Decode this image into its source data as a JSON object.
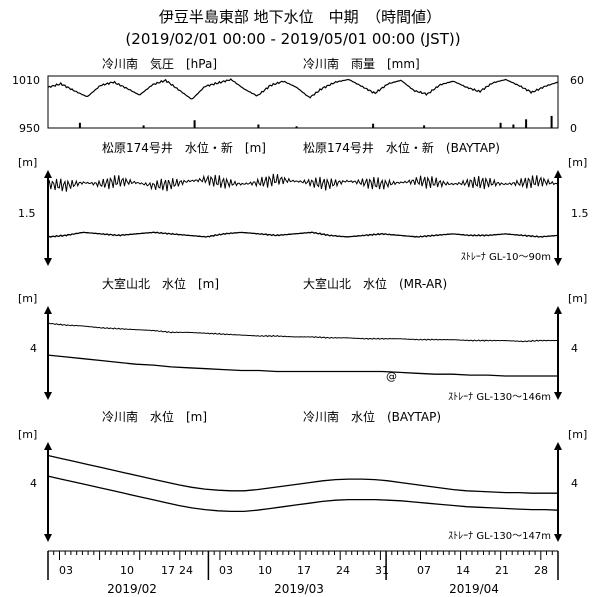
{
  "title": "伊豆半島東部 地下水位　中期　（時間値）",
  "subtitle": "(2019/02/01 00:00 - 2019/05/01 00:00 (JST))",
  "chart_data": {
    "type": "line",
    "x_start": "2019-02-01 00:00",
    "x_end": "2019-05-01 00:00",
    "panels": [
      {
        "left_label": "冷川南　気圧　[hPa]",
        "right_label": "冷川南　雨量　[mm]",
        "left_ticks": [
          "1010",
          "950"
        ],
        "right_ticks": [
          "60",
          "0"
        ],
        "left_ylim": [
          950,
          1010
        ],
        "right_ylim": [
          0,
          60
        ],
        "series": [
          {
            "kind": "pressure",
            "values": [
              997,
              1001,
              993,
              986,
              999,
              1003,
              996,
              988,
              1000,
              1005,
              994,
              983,
              998,
              1002,
              1006,
              995,
              987,
              999,
              1004,
              997,
              985,
              996,
              1003,
              1006,
              998,
              990,
              1001,
              1005,
              993,
              989,
              1000,
              1004,
              997,
              992,
              1002,
              1006,
              999,
              991,
              998,
              1003
            ]
          },
          {
            "kind": "rain",
            "values": [
              0,
              0,
              6,
              0,
              0,
              0,
              0,
              3,
              0,
              0,
              0,
              9,
              0,
              0,
              0,
              0,
              4,
              0,
              0,
              2,
              0,
              0,
              0,
              0,
              0,
              5,
              0,
              0,
              0,
              3,
              0,
              0,
              0,
              0,
              0,
              6,
              4,
              10,
              0,
              14
            ]
          }
        ]
      },
      {
        "left_label": "松原174号井　水位・新　[m]",
        "right_label": "松原174号井　水位・新　(BAYTAP)",
        "unit": "[m]",
        "level_label": "1.5",
        "footer": "ｽﾄﾚｰﾅ GL-10～90m",
        "series": [
          {
            "kind": "raw",
            "values": [
              1.59,
              1.58,
              1.6,
              1.59,
              1.61,
              1.6,
              1.58,
              1.59,
              1.61,
              1.62,
              1.6,
              1.59,
              1.6,
              1.62,
              1.61,
              1.6,
              1.59,
              1.61,
              1.6,
              1.59,
              1.6,
              1.61,
              1.6,
              1.59,
              1.6,
              1.6,
              1.59,
              1.6,
              1.61,
              1.59
            ]
          },
          {
            "kind": "corrected",
            "values": [
              1.24,
              1.25,
              1.27,
              1.26,
              1.25,
              1.26,
              1.27,
              1.26,
              1.25,
              1.24,
              1.26,
              1.27,
              1.26,
              1.25,
              1.26,
              1.27,
              1.25,
              1.24,
              1.25,
              1.26,
              1.25,
              1.24,
              1.25,
              1.26,
              1.25,
              1.25,
              1.26,
              1.25,
              1.24,
              1.25
            ]
          }
        ]
      },
      {
        "left_label": "大室山北　水位　[m]",
        "right_label": "大室山北　水位　(MR-AR)",
        "unit": "[m]",
        "level_label": "4",
        "marker": "@",
        "footer": "ｽﾄﾚｰﾅ GL-130～146m",
        "series": [
          {
            "kind": "raw",
            "values": [
              4.3,
              4.28,
              4.27,
              4.25,
              4.24,
              4.23,
              4.22,
              4.2,
              4.2,
              4.19,
              4.18,
              4.17,
              4.16,
              4.16,
              4.15,
              4.15,
              4.14,
              4.14,
              4.13,
              4.13,
              4.13,
              4.12,
              4.12,
              4.12,
              4.11,
              4.11,
              4.11,
              4.1,
              4.11,
              4.11
            ]
          },
          {
            "kind": "corrected",
            "values": [
              3.95,
              3.93,
              3.91,
              3.89,
              3.87,
              3.85,
              3.84,
              3.82,
              3.81,
              3.8,
              3.79,
              3.78,
              3.78,
              3.77,
              3.77,
              3.77,
              3.77,
              3.77,
              3.77,
              3.77,
              3.76,
              3.75,
              3.74,
              3.74,
              3.73,
              3.73,
              3.72,
              3.72,
              3.72,
              3.72
            ]
          }
        ]
      },
      {
        "left_label": "冷川南　水位　[m]",
        "right_label": "冷川南　水位　(BAYTAP)",
        "unit": "[m]",
        "level_label": "4",
        "footer": "ｽﾄﾚｰﾅ GL-130～147m",
        "series": [
          {
            "kind": "raw",
            "values": [
              4.6,
              4.55,
              4.5,
              4.45,
              4.4,
              4.35,
              4.3,
              4.25,
              4.2,
              4.15,
              4.1,
              4.06,
              4.03,
              4.01,
              4.0,
              4.0,
              4.02,
              4.05,
              4.08,
              4.11,
              4.14,
              4.17,
              4.19,
              4.2,
              4.2,
              4.19,
              4.17,
              4.14,
              4.11,
              4.08,
              4.05,
              4.02,
              4.0,
              3.99,
              3.98,
              3.97,
              3.97,
              3.96,
              3.96,
              3.96
            ]
          },
          {
            "kind": "corrected",
            "values": [
              4.25,
              4.2,
              4.15,
              4.1,
              4.05,
              4.0,
              3.95,
              3.9,
              3.85,
              3.8,
              3.75,
              3.71,
              3.68,
              3.66,
              3.65,
              3.65,
              3.67,
              3.7,
              3.73,
              3.76,
              3.79,
              3.82,
              3.84,
              3.85,
              3.85,
              3.85,
              3.84,
              3.83,
              3.81,
              3.79,
              3.77,
              3.75,
              3.73,
              3.72,
              3.71,
              3.7,
              3.69,
              3.68,
              3.68,
              3.67
            ]
          }
        ]
      }
    ],
    "x_ticks": [
      "03",
      "10",
      "17",
      "24",
      "03",
      "10",
      "17",
      "24",
      "31",
      "07",
      "14",
      "21",
      "28"
    ],
    "months": [
      "2019/02",
      "2019/03",
      "2019/04"
    ]
  }
}
